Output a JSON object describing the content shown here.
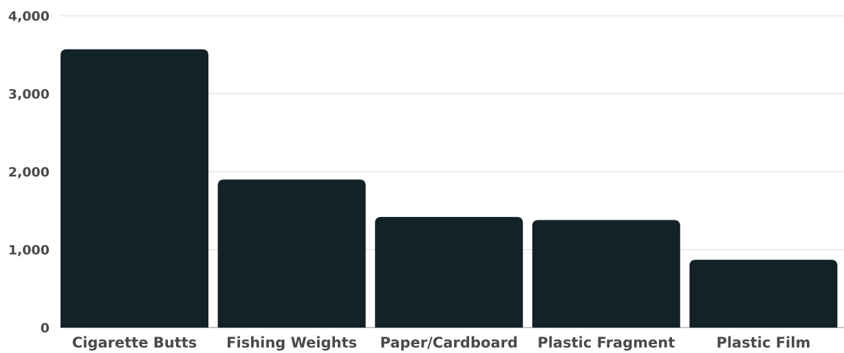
{
  "chart_data": {
    "type": "bar",
    "categories": [
      "Cigarette Butts",
      "Fishing Weights",
      "Paper/Cardboard",
      "Plastic Fragment",
      "Plastic Film"
    ],
    "values": [
      3570,
      1900,
      1420,
      1380,
      870
    ],
    "title": "",
    "xlabel": "",
    "ylabel": "",
    "ylim": [
      0,
      4000
    ],
    "yticks": [
      0,
      1000,
      2000,
      3000,
      4000
    ],
    "ytick_labels": [
      "0",
      "1,000",
      "2,000",
      "3,000",
      "4,000"
    ],
    "grid": true,
    "legend": "none",
    "bar_color": "#132226"
  }
}
